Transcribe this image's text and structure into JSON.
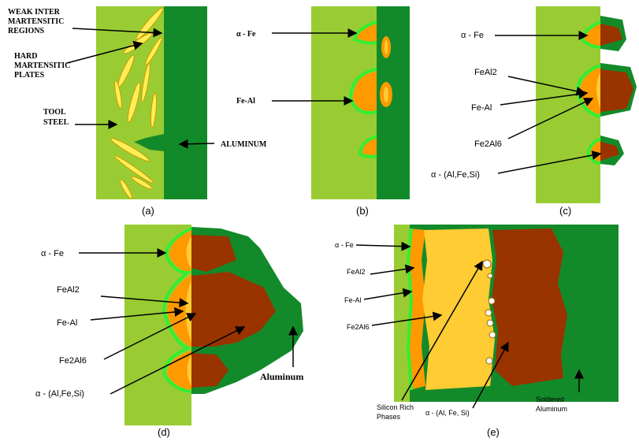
{
  "panels": [
    {
      "caption": "(a)",
      "labels": [
        [
          "WEAK INTER",
          "MARTENSITIC",
          "REGIONS"
        ],
        [
          "HARD",
          "MARTENSITIC",
          "PLATES"
        ],
        [
          "TOOL",
          "STEEL"
        ],
        [
          "ALUMINUM"
        ]
      ]
    },
    {
      "caption": "(b)",
      "labels": [
        [
          "α - Fe"
        ],
        [
          "Fe-Al"
        ]
      ]
    },
    {
      "caption": "(c)",
      "labels": [
        [
          "α - Fe"
        ],
        [
          "FeAl2"
        ],
        [
          "Fe-Al"
        ],
        [
          "Fe2Al6"
        ],
        [
          "α - (Al,Fe,Si)"
        ]
      ]
    },
    {
      "caption": "(d)",
      "labels": [
        [
          "α - Fe"
        ],
        [
          "FeAl2"
        ],
        [
          "Fe-Al"
        ],
        [
          "Fe2Al6"
        ],
        [
          "α - (Al,Fe,Si)"
        ],
        [
          "Aluminum"
        ]
      ]
    },
    {
      "caption": "(e)",
      "labels": [
        [
          "α - Fe"
        ],
        [
          "FeAl2"
        ],
        [
          "Fe-Al"
        ],
        [
          "Fe2Al6"
        ],
        [
          "Silicon Rich",
          "Phases"
        ],
        [
          "α - (Al, Fe, Si)"
        ],
        [
          "Soldered",
          "Aluminum"
        ]
      ]
    }
  ]
}
